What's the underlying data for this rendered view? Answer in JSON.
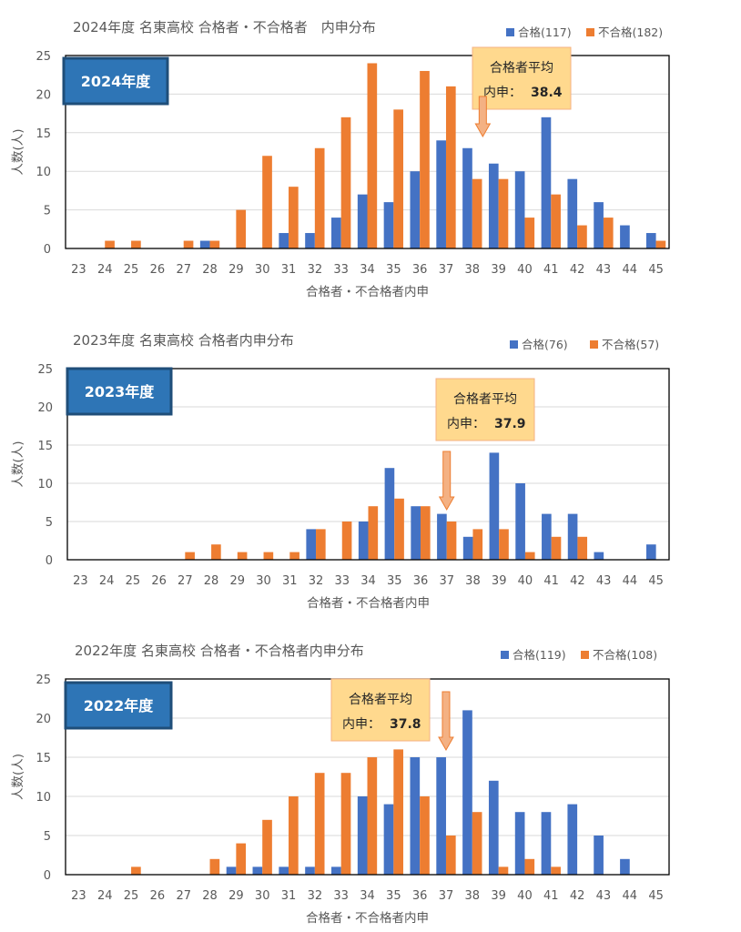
{
  "chart_data": [
    {
      "type": "bar",
      "title": "2024年度 名東高校 合格者・不合格者　内申分布",
      "year_badge": "2024年度",
      "xlabel": "合格者・不合格者内申",
      "ylabel": "人数(人)",
      "ylim": [
        0,
        25
      ],
      "yticks": [
        0,
        5,
        10,
        15,
        20,
        25
      ],
      "grid": true,
      "legend_position": "top-right",
      "categories": [
        "23",
        "24",
        "25",
        "26",
        "27",
        "28",
        "29",
        "30",
        "31",
        "32",
        "33",
        "34",
        "35",
        "36",
        "37",
        "38",
        "39",
        "40",
        "41",
        "42",
        "43",
        "44",
        "45"
      ],
      "series": [
        {
          "name": "合格(117)",
          "color": "#4472C4",
          "values": [
            0,
            0,
            0,
            0,
            0,
            1,
            0,
            0,
            2,
            2,
            4,
            7,
            6,
            10,
            14,
            13,
            11,
            10,
            17,
            9,
            6,
            3,
            2
          ]
        },
        {
          "name": "不合格(182)",
          "color": "#ED7D31",
          "values": [
            0,
            1,
            1,
            0,
            1,
            1,
            5,
            12,
            8,
            13,
            17,
            24,
            18,
            23,
            21,
            9,
            9,
            4,
            7,
            3,
            4,
            0,
            1
          ]
        }
      ],
      "average_box": {
        "title": "合格者平均",
        "label": "内申：",
        "value": "38.4",
        "x": 38.4
      }
    },
    {
      "type": "bar",
      "title": "2023年度 名東高校 合格者内申分布",
      "year_badge": "2023年度",
      "xlabel": "合格者・不合格者内申",
      "ylabel": "人数(人)",
      "ylim": [
        0,
        25
      ],
      "yticks": [
        0,
        5,
        10,
        15,
        20,
        25
      ],
      "grid": true,
      "legend_position": "top-right",
      "categories": [
        "23",
        "24",
        "25",
        "26",
        "27",
        "28",
        "29",
        "30",
        "31",
        "32",
        "33",
        "34",
        "35",
        "36",
        "37",
        "38",
        "39",
        "40",
        "41",
        "42",
        "43",
        "44",
        "45"
      ],
      "series": [
        {
          "name": "合格(76)",
          "color": "#4472C4",
          "values": [
            0,
            0,
            0,
            0,
            0,
            0,
            0,
            0,
            0,
            4,
            0,
            5,
            12,
            7,
            6,
            3,
            14,
            10,
            6,
            6,
            1,
            0,
            2
          ]
        },
        {
          "name": "不合格(57)",
          "color": "#ED7D31",
          "values": [
            0,
            0,
            0,
            0,
            1,
            2,
            1,
            1,
            1,
            4,
            5,
            7,
            8,
            7,
            5,
            4,
            4,
            1,
            3,
            3,
            0,
            0,
            0
          ]
        }
      ],
      "average_box": {
        "title": "合格者平均",
        "label": "内申：",
        "value": "37.9",
        "x": 37.0
      }
    },
    {
      "type": "bar",
      "title": "2022年度 名東高校 合格者・不合格者内申分布",
      "year_badge": "2022年度",
      "xlabel": "合格者・不合格者内申",
      "ylabel": "人数(人)",
      "ylim": [
        0,
        25
      ],
      "yticks": [
        0,
        5,
        10,
        15,
        20,
        25
      ],
      "grid": true,
      "legend_position": "top-right",
      "categories": [
        "23",
        "24",
        "25",
        "26",
        "27",
        "28",
        "29",
        "30",
        "31",
        "32",
        "33",
        "34",
        "35",
        "36",
        "37",
        "38",
        "39",
        "40",
        "41",
        "42",
        "43",
        "44",
        "45"
      ],
      "series": [
        {
          "name": "合格(119)",
          "color": "#4472C4",
          "values": [
            0,
            0,
            0,
            0,
            0,
            0,
            1,
            1,
            1,
            1,
            1,
            10,
            9,
            15,
            15,
            21,
            12,
            8,
            8,
            9,
            5,
            2,
            0
          ]
        },
        {
          "name": "不合格(108)",
          "color": "#ED7D31",
          "values": [
            0,
            0,
            1,
            0,
            0,
            2,
            4,
            7,
            10,
            13,
            13,
            15,
            16,
            10,
            5,
            8,
            1,
            2,
            1,
            0,
            0,
            0,
            0
          ]
        }
      ],
      "average_box": {
        "title": "合格者平均",
        "label": "内申：",
        "value": "37.8",
        "x": 37.0
      }
    }
  ],
  "colors": {
    "pass": "#4472C4",
    "fail": "#ED7D31",
    "badge_fill": "#2E75B6",
    "badge_border": "#1F4E79",
    "avg_box_fill": "#FFD98E",
    "avg_box_border": "#F4B183",
    "arrow_fill": "#F4B183",
    "arrow_stroke": "#ED7D31",
    "gridline": "#D9D9D9",
    "plot_border": "#000000"
  }
}
